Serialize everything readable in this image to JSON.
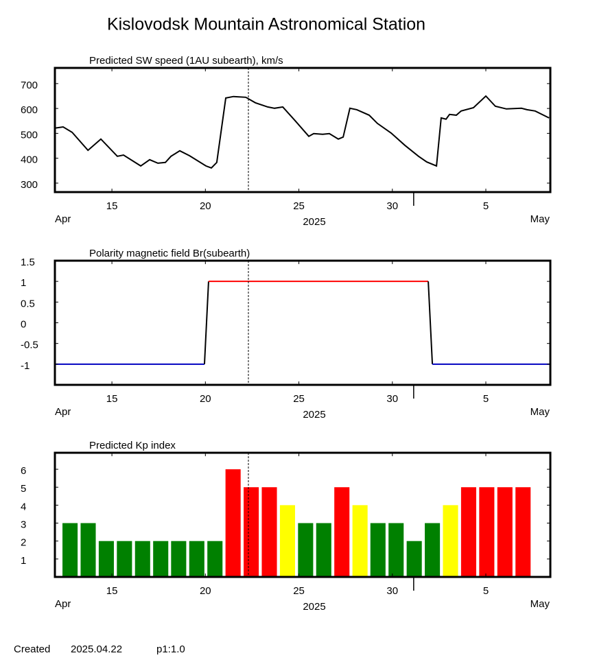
{
  "title": "Kislovodsk Mountain Astronomical Station",
  "footer": {
    "label": "Created",
    "date": "2025.04.22",
    "page": "p1:1.0"
  },
  "chart_data": [
    {
      "type": "line",
      "title": "Predicted SW speed (1AU subearth), km/s",
      "color": "#000000",
      "x": [
        11.95,
        12.39,
        12.87,
        13.72,
        14.41,
        15.29,
        15.62,
        16.54,
        17.02,
        17.46,
        17.86,
        18.16,
        18.63,
        19.15,
        20.03,
        20.32,
        20.61,
        21.09,
        21.5,
        22.16,
        22.67,
        23.33,
        23.7,
        24.14,
        24.8,
        25.53,
        25.79,
        26.27,
        26.63,
        27.11,
        27.37,
        27.73,
        28.1,
        28.76,
        29.2,
        29.94,
        30.67,
        31.4,
        31.84,
        32.36,
        32.61,
        32.87,
        33.06,
        33.42,
        33.68,
        34.34,
        35.0,
        35.51,
        36.1,
        36.91,
        37.2,
        37.64,
        38.38
      ],
      "values": [
        521,
        526,
        504,
        432,
        477,
        408,
        413,
        369,
        394,
        380,
        383,
        408,
        430,
        410,
        369,
        361,
        383,
        642,
        648,
        645,
        623,
        606,
        601,
        606,
        551,
        488,
        499,
        496,
        499,
        477,
        485,
        601,
        595,
        573,
        540,
        501,
        452,
        408,
        385,
        369,
        562,
        557,
        576,
        573,
        590,
        603,
        650,
        609,
        598,
        601,
        595,
        590,
        562
      ],
      "xlim": [
        11.95,
        38.45
      ],
      "ylim": [
        264,
        763
      ],
      "xticks": [
        15,
        20,
        25,
        30,
        {
          "value": 35,
          "label": "5"
        }
      ],
      "yticks": [
        300,
        400,
        500,
        600,
        700
      ],
      "x_labels": {
        "left": "Apr",
        "center": "2025",
        "right": "May"
      },
      "month_divider": 31.14,
      "current_time": 22.3
    },
    {
      "type": "polarity",
      "title": "Polarity magnetic field  Br(subearth)",
      "colors": {
        "positive": "#ff0000",
        "negative": "#0000c0",
        "transition": "#000000"
      },
      "x": [
        11.95,
        19.95,
        20.17,
        31.92,
        32.14,
        38.45
      ],
      "values": [
        -1,
        -1,
        1,
        1,
        -1,
        -1
      ],
      "xlim": [
        11.95,
        38.45
      ],
      "ylim": [
        -1.5,
        1.5
      ],
      "xticks": [
        15,
        20,
        25,
        30,
        {
          "value": 35,
          "label": "5"
        }
      ],
      "yticks": [
        -1,
        -0.5,
        0,
        0.5,
        1,
        1.5
      ],
      "x_labels": {
        "left": "Apr",
        "center": "2025",
        "right": "May"
      },
      "month_divider": 31.14,
      "current_time": 22.3
    },
    {
      "type": "bar",
      "title": "Predicted Kp index",
      "x": [
        12.76,
        13.73,
        14.7,
        15.67,
        16.64,
        17.61,
        18.57,
        19.54,
        20.51,
        21.48,
        22.45,
        23.42,
        24.39,
        25.36,
        26.33,
        27.3,
        28.27,
        29.23,
        30.2,
        31.17,
        32.14,
        33.11,
        34.08,
        35.05,
        36.02,
        36.99
      ],
      "values": [
        3,
        3,
        2,
        2,
        2,
        2,
        2,
        2,
        2,
        6,
        5,
        5,
        4,
        3,
        3,
        5,
        4,
        3,
        3,
        2,
        3,
        4,
        5,
        5,
        5,
        5
      ],
      "colors": [
        "#008000",
        "#008000",
        "#008000",
        "#008000",
        "#008000",
        "#008000",
        "#008000",
        "#008000",
        "#008000",
        "#ff0000",
        "#ff0000",
        "#ff0000",
        "#ffff00",
        "#008000",
        "#008000",
        "#ff0000",
        "#ffff00",
        "#008000",
        "#008000",
        "#008000",
        "#008000",
        "#ffff00",
        "#ff0000",
        "#ff0000",
        "#ff0000",
        "#ff0000"
      ],
      "xlim": [
        11.95,
        38.45
      ],
      "ylim": [
        0,
        6.92
      ],
      "xticks": [
        15,
        20,
        25,
        30,
        {
          "value": 35,
          "label": "5"
        }
      ],
      "yticks": [
        1,
        2,
        3,
        4,
        5,
        6
      ],
      "x_labels": {
        "left": "Apr",
        "center": "2025",
        "right": "May"
      },
      "month_divider": 31.14,
      "current_time": 22.3
    }
  ]
}
